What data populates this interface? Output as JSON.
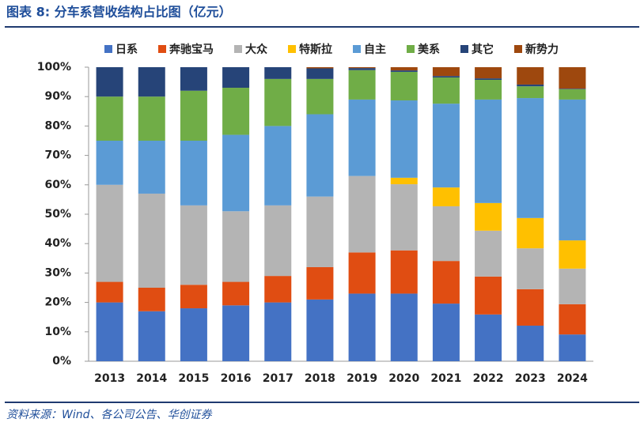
{
  "chart_data": {
    "type": "stacked-bar",
    "title": "图表 8:  分车系营收结构占比图（亿元）",
    "source": "资料来源：Wind、各公司公告、华创证券",
    "categories": [
      "2013",
      "2014",
      "2015",
      "2016",
      "2017",
      "2018",
      "2019",
      "2020",
      "2021",
      "2022",
      "2023",
      "2024"
    ],
    "series": [
      {
        "name": "日系",
        "color": "#4472c4",
        "values": [
          20,
          17,
          18,
          19,
          20,
          21,
          23,
          23,
          19.6,
          15.9,
          12.1,
          9.1
        ]
      },
      {
        "name": "奔驰宝马",
        "color": "#e04d12",
        "values": [
          7,
          8,
          8,
          8,
          9,
          11,
          14,
          14.7,
          14.5,
          12.9,
          12.4,
          10.3
        ]
      },
      {
        "name": "大众",
        "color": "#b4b4b4",
        "values": [
          33,
          32,
          27,
          24,
          24,
          24,
          26,
          22.5,
          18.6,
          15.6,
          13.9,
          12.1
        ]
      },
      {
        "name": "特斯拉",
        "color": "#ffc000",
        "values": [
          0,
          0,
          0,
          0,
          0,
          0,
          0,
          2.2,
          6.4,
          9.4,
          10.3,
          9.6
        ]
      },
      {
        "name": "自主",
        "color": "#5b9bd5",
        "values": [
          15,
          18,
          22,
          26,
          27,
          28,
          26,
          26.3,
          28.5,
          35.2,
          40.8,
          47.9
        ]
      },
      {
        "name": "美系",
        "color": "#70ad47",
        "values": [
          15,
          15,
          17,
          16,
          16,
          12,
          10,
          9.7,
          8.9,
          6.7,
          4,
          3.5
        ]
      },
      {
        "name": "其它",
        "color": "#264478",
        "values": [
          10,
          10,
          8,
          7,
          4,
          3.6,
          0.7,
          0.5,
          0.5,
          0.5,
          0.6,
          0.2
        ]
      },
      {
        "name": "新势力",
        "color": "#9e480e",
        "values": [
          0,
          0,
          0,
          0,
          0,
          0.4,
          0.3,
          1.1,
          3,
          3.8,
          5.9,
          7.3
        ]
      }
    ],
    "ylim": [
      0,
      100
    ],
    "yticks": [
      {
        "value": 0,
        "label": "0%"
      },
      {
        "value": 10,
        "label": "10%"
      },
      {
        "value": 20,
        "label": "20%"
      },
      {
        "value": 30,
        "label": "30%"
      },
      {
        "value": 40,
        "label": "40%"
      },
      {
        "value": 50,
        "label": "50%"
      },
      {
        "value": 60,
        "label": "60%"
      },
      {
        "value": 70,
        "label": "70%"
      },
      {
        "value": 80,
        "label": "80%"
      },
      {
        "value": 90,
        "label": "90%"
      },
      {
        "value": 100,
        "label": "100%"
      }
    ],
    "grid": false,
    "legend": "top"
  }
}
